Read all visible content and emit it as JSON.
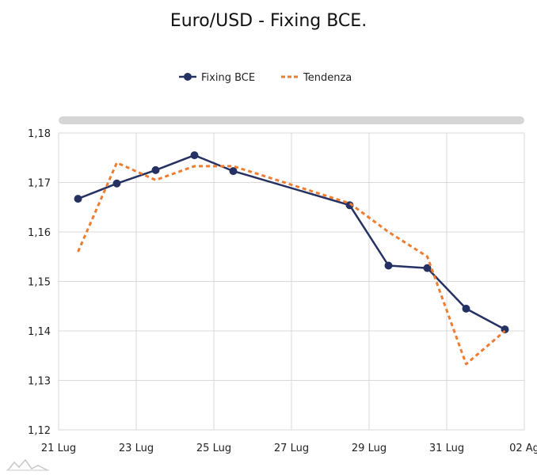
{
  "chart_data": {
    "type": "line",
    "title": "Euro/USD - Fixing BCE.",
    "xlabel": "",
    "ylabel": "",
    "x_tick_labels": [
      "21 Lug",
      "23 Lug",
      "25 Lug",
      "27 Lug",
      "29 Lug",
      "31 Lug",
      "02 Ag"
    ],
    "y_tick_labels": [
      "1,12",
      "1,13",
      "1,14",
      "1,15",
      "1,16",
      "1,17",
      "1,18"
    ],
    "ylim": [
      1.12,
      1.18
    ],
    "xlim_days": [
      "21 Lug",
      "02 Ag"
    ],
    "grid": true,
    "legend_position": "top-center",
    "scrollbar": true,
    "series": [
      {
        "name": "Fixing BCE",
        "style": "solid-with-markers",
        "color": "#253162",
        "x": [
          "21 Lug",
          "22 Lug",
          "23 Lug",
          "24 Lug",
          "25 Lug",
          "28 Lug",
          "29 Lug",
          "30 Lug",
          "31 Lug",
          "01 Ag"
        ],
        "x_days": [
          21.5,
          22.5,
          23.5,
          24.5,
          25.5,
          28.5,
          29.5,
          30.5,
          31.5,
          32.5
        ],
        "values": [
          1.1667,
          1.1698,
          1.1725,
          1.1755,
          1.1723,
          1.1654,
          1.1532,
          1.1527,
          1.1445,
          1.1403
        ]
      },
      {
        "name": "Tendenza",
        "style": "dashed",
        "color": "#ED7D31",
        "x_days": [
          21.5,
          22.5,
          23.5,
          24.5,
          25.5,
          28.5,
          29.5,
          30.5,
          31.5,
          32.5
        ],
        "values": [
          1.156,
          1.174,
          1.1705,
          1.1733,
          1.1733,
          1.1658,
          1.16,
          1.155,
          1.1333,
          1.14
        ]
      }
    ]
  }
}
